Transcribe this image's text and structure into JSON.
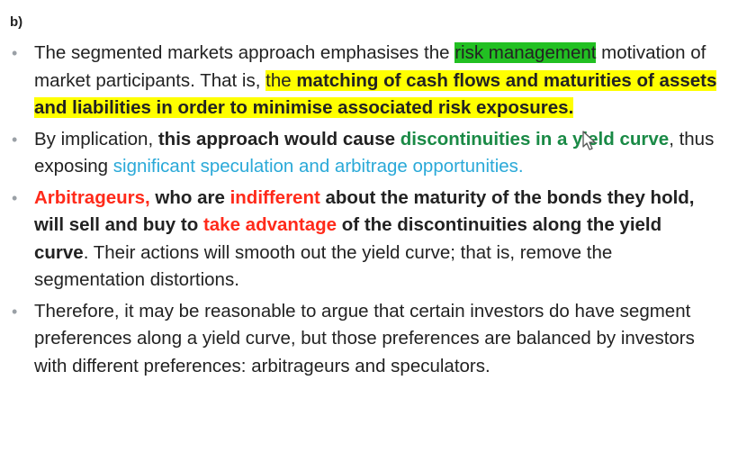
{
  "heading": {
    "label": "b)"
  },
  "icons": {
    "bullet": "bullet-dot",
    "cursor": "mouse-cursor-icon"
  },
  "colors": {
    "highlight_yellow": "#ffff00",
    "highlight_green": "#22c022",
    "text_green": "#1a8a46",
    "text_cyan": "#2aa9d8",
    "text_red": "#ff2a1a"
  },
  "bullets": [
    {
      "segments": [
        "The segmented markets approach emphasises the ",
        "risk management",
        " motivation of market participants. That is, ",
        "the ",
        "matching of cash flows and maturities of assets and liabilities in order to minimise associated risk exposures."
      ]
    },
    {
      "segments": [
        "By implication, ",
        "this approach would cause ",
        "discontinuities in a yield curve",
        ", thus exposing ",
        "significant speculation and arbitrage opportunities."
      ]
    },
    {
      "segments": [
        "Arbitrageurs,",
        " who are ",
        "indifferent",
        " about the maturity of the bonds they hold, will sell and buy to ",
        "take advantage",
        " of the discontinuities along the yield curve",
        ". Their actions will smooth out the yield curve; that is, remove the segmentation distortions."
      ]
    },
    {
      "segments": [
        "Therefore, it may be reasonable to argue that certain investors do have segment preferences along a yield curve, but those preferences are balanced by investors with different preferences: arbitrageurs and speculators."
      ]
    }
  ]
}
